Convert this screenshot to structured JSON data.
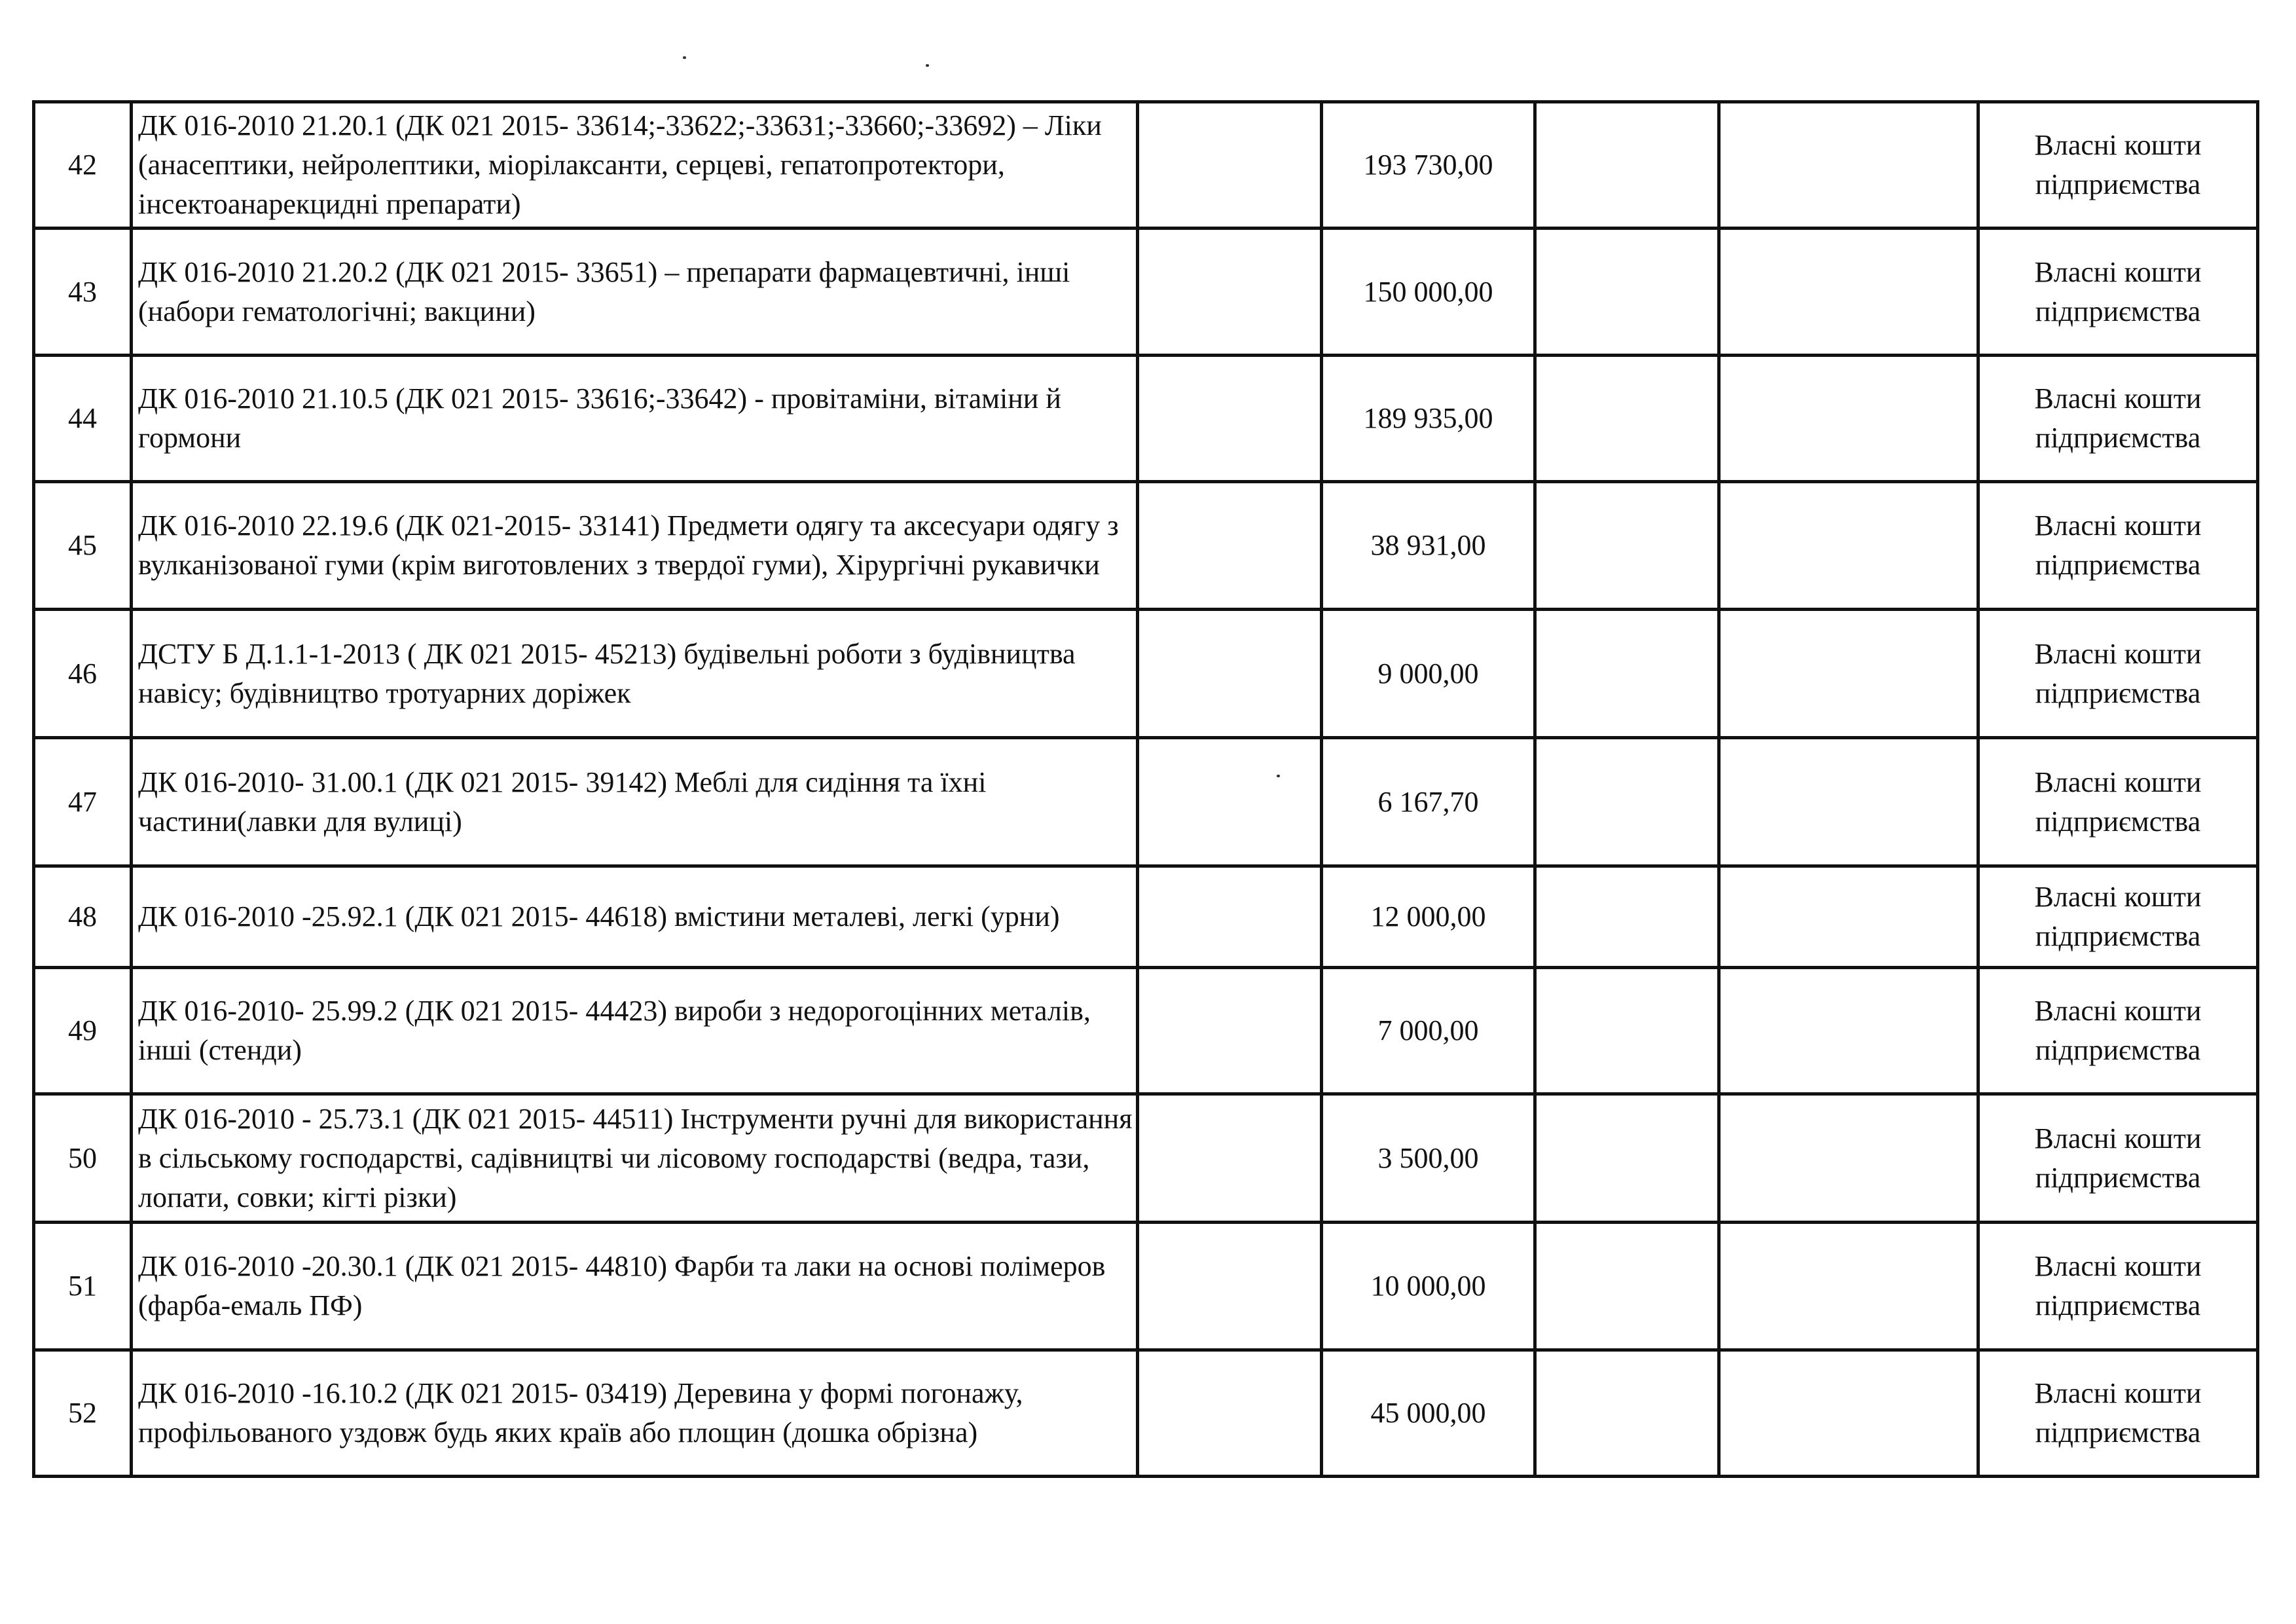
{
  "rows": [
    {
      "no": "42",
      "description": "ДК 016-2010 21.20.1 (ДК 021 2015- 33614;-33622;-33631;-33660;-33692) – Ліки (анасептики, нейролептики, міорілаксанти, серцеві, гепатопротектори,  інсектоанарекцидні препарати)",
      "amount": "193 730,00",
      "source": "Власні кошти підприємства"
    },
    {
      "no": "43",
      "description": "ДК 016-2010 21.20.2 (ДК 021 2015- 33651) – препарати фармацевтичні, інші (набори гематологічні; вакцини)",
      "amount": "150 000,00",
      "source": "Власні кошти підприємства"
    },
    {
      "no": "44",
      "description": "ДК 016-2010 21.10.5 (ДК 021 2015- 33616;-33642) - провітаміни, вітаміни й гормони",
      "amount": "189 935,00",
      "source": "Власні кошти підприємства"
    },
    {
      "no": "45",
      "description": "ДК 016-2010 22.19.6 (ДК 021-2015- 33141) Предмети одягу та аксесуари одягу з вулканізованої гуми (крім виготовлених з твердої гуми), Хірургічні рукавички",
      "amount": "38 931,00",
      "source": "Власні кошти підприємства"
    },
    {
      "no": "46",
      "description": "ДСТУ Б Д.1.1-1-2013 ( ДК 021 2015- 45213) будівельні роботи з будівництва навісу; будівництво тротуарних доріжек",
      "amount": "9 000,00",
      "source": "Власні кошти підприємства"
    },
    {
      "no": "47",
      "description": "ДК 016-2010- 31.00.1 (ДК 021 2015- 39142) Меблі для сидіння та їхні частини(лавки для вулиці)",
      "amount": "6 167,70",
      "source": "Власні кошти підприємства"
    },
    {
      "no": "48",
      "description": "ДК 016-2010 -25.92.1 (ДК 021 2015- 44618) вмістини металеві, легкі (урни)",
      "amount": "12 000,00",
      "source": "Власні кошти підприємства"
    },
    {
      "no": "49",
      "description": "ДК 016-2010- 25.99.2 (ДК 021 2015- 44423) вироби з недорогоцінних металів, інші (стенди)",
      "amount": "7 000,00",
      "source": "Власні кошти підприємства"
    },
    {
      "no": "50",
      "description": "ДК 016-2010 - 25.73.1 (ДК 021 2015- 44511) Інструменти ручні для використання в сільському господарстві, садівництві чи лісовому господарстві (ведра, тази, лопати, совки; кігті різки)",
      "amount": "3 500,00",
      "source": "Власні кошти підприємства"
    },
    {
      "no": "51",
      "description": "ДК 016-2010 -20.30.1 (ДК 021 2015- 44810) Фарби та лаки на основі полімеров (фарба-емаль ПФ)",
      "amount": "10 000,00",
      "source": "Власні кошти підприємства"
    },
    {
      "no": "52",
      "description": "ДК 016-2010 -16.10.2 (ДК 021 2015- 03419) Деревина у формі погонажу, профільованого уздовж будь яких країв або площин (дошка обрізна)",
      "amount": "45 000,00",
      "source": "Власні кошти підприємства"
    }
  ]
}
